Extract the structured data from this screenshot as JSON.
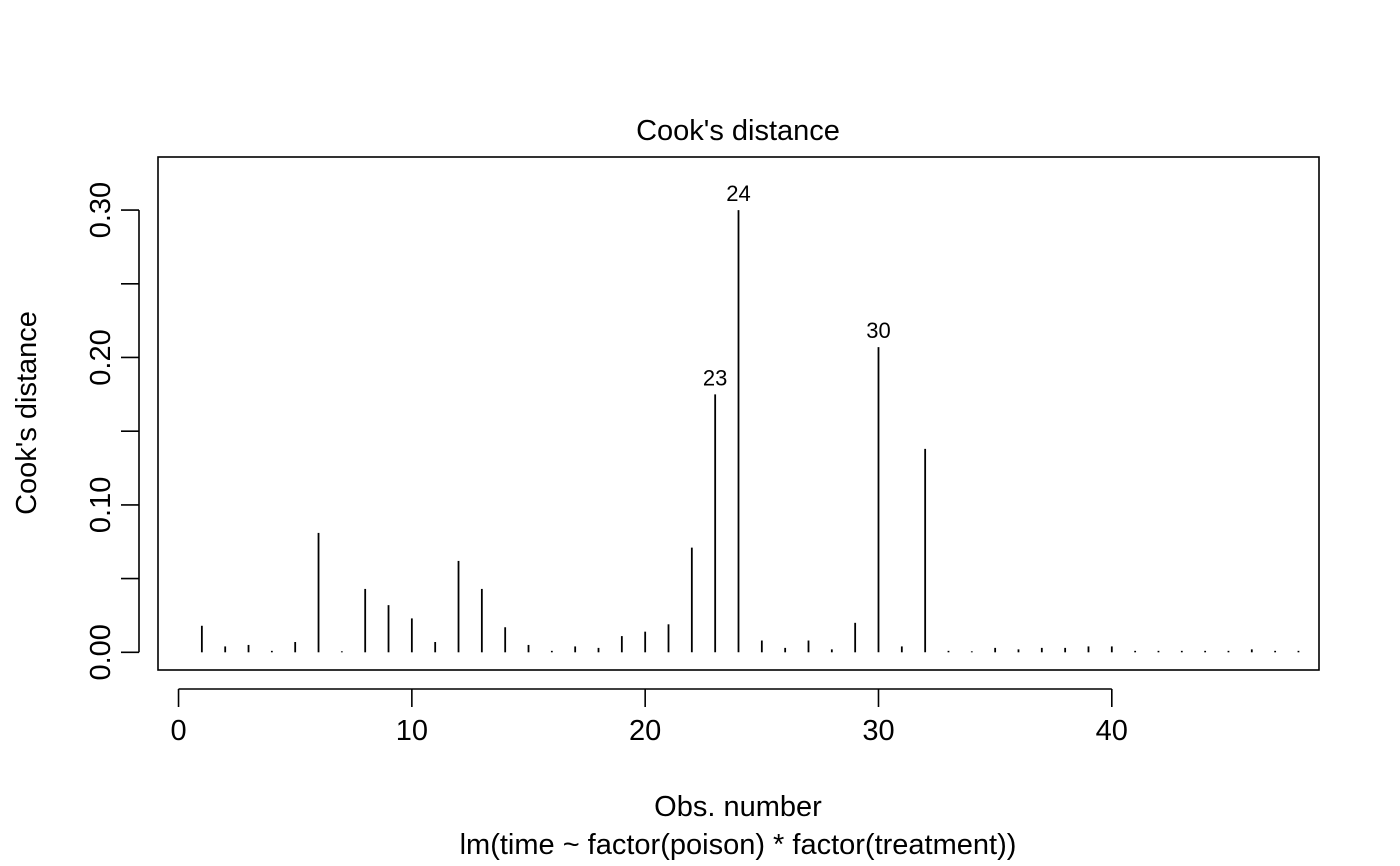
{
  "chart_data": {
    "type": "bar",
    "title": "Cook's distance",
    "xlabel": "Obs. number",
    "subtitle": "lm(time ~ factor(poison) * factor(treatment))",
    "ylabel": "Cook's distance",
    "xlim": [
      -0.88,
      48.88
    ],
    "ylim": [
      -0.012,
      0.336
    ],
    "x_ticks": [
      0,
      10,
      20,
      30,
      40
    ],
    "y_ticks": [
      0.0,
      0.05,
      0.1,
      0.15,
      0.2,
      0.25,
      0.3
    ],
    "y_tick_labels": [
      "0.00",
      "",
      "0.10",
      "",
      "0.20",
      "",
      "0.30"
    ],
    "x": [
      1,
      2,
      3,
      4,
      5,
      6,
      7,
      8,
      9,
      10,
      11,
      12,
      13,
      14,
      15,
      16,
      17,
      18,
      19,
      20,
      21,
      22,
      23,
      24,
      25,
      26,
      27,
      28,
      29,
      30,
      31,
      32,
      33,
      34,
      35,
      36,
      37,
      38,
      39,
      40,
      41,
      42,
      43,
      44,
      45,
      46,
      47,
      48
    ],
    "values": [
      0.018,
      0.004,
      0.005,
      0.001,
      0.007,
      0.081,
      0.0,
      0.043,
      0.032,
      0.023,
      0.007,
      0.062,
      0.043,
      0.017,
      0.005,
      0.001,
      0.004,
      0.003,
      0.011,
      0.014,
      0.019,
      0.071,
      0.175,
      0.3,
      0.008,
      0.003,
      0.008,
      0.002,
      0.02,
      0.207,
      0.004,
      0.138,
      0.001,
      0.0,
      0.003,
      0.002,
      0.003,
      0.003,
      0.004,
      0.004,
      0.001,
      0.001,
      0.001,
      0.001,
      0.001,
      0.002,
      0.001,
      0.001
    ],
    "annotations": [
      {
        "x": 23,
        "label": "23"
      },
      {
        "x": 24,
        "label": "24"
      },
      {
        "x": 30,
        "label": "30"
      }
    ]
  }
}
